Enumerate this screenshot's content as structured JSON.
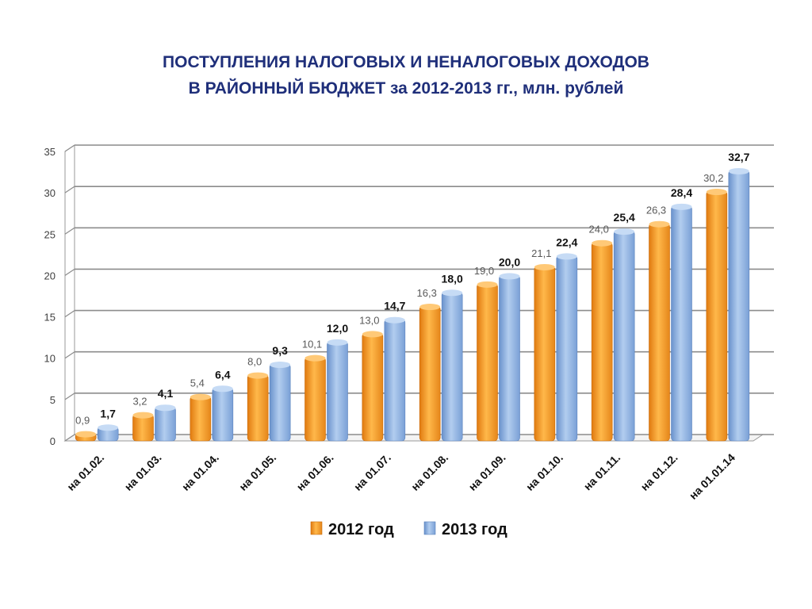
{
  "chart_data": {
    "type": "bar",
    "title_lines": [
      "ПОСТУПЛЕНИЯ НАЛОГОВЫХ И НЕНАЛОГОВЫХ ДОХОДОВ",
      "В РАЙОННЫЙ БЮДЖЕТ за 2012-2013 гг., млн. рублей"
    ],
    "categories": [
      "на 01.02.",
      "на 01.03.",
      "на 01.04.",
      "на 01.05.",
      "на 01.06.",
      "на 01.07.",
      "на 01.08.",
      "на 01.09.",
      "на 01.10.",
      "на 01.11.",
      "на 01.12.",
      "на 01.01.14"
    ],
    "series": [
      {
        "name": "2012 год",
        "values": [
          0.9,
          3.2,
          5.4,
          8.0,
          10.1,
          13.0,
          16.3,
          19.0,
          21.1,
          24.0,
          26.3,
          30.2
        ],
        "labels": [
          "0,9",
          "3,2",
          "5,4",
          "8,0",
          "10,1",
          "13,0",
          "16,3",
          "19,0",
          "21,1",
          "24,0",
          "26,3",
          "30,2"
        ],
        "color": "#f7a12f"
      },
      {
        "name": "2013 год",
        "values": [
          1.7,
          4.1,
          6.4,
          9.3,
          12.0,
          14.7,
          18.0,
          20.0,
          22.4,
          25.4,
          28.4,
          32.7
        ],
        "labels": [
          "1,7",
          "4,1",
          "6,4",
          "9,3",
          "12,0",
          "14,7",
          "18,0",
          "20,0",
          "22,4",
          "25,4",
          "28,4",
          "32,7"
        ],
        "color": "#8fb4e3"
      }
    ],
    "ylim": [
      0,
      35
    ],
    "yticks": [
      0,
      5,
      10,
      15,
      20,
      25,
      30,
      35
    ],
    "grid": true,
    "legend_position": "bottom"
  }
}
